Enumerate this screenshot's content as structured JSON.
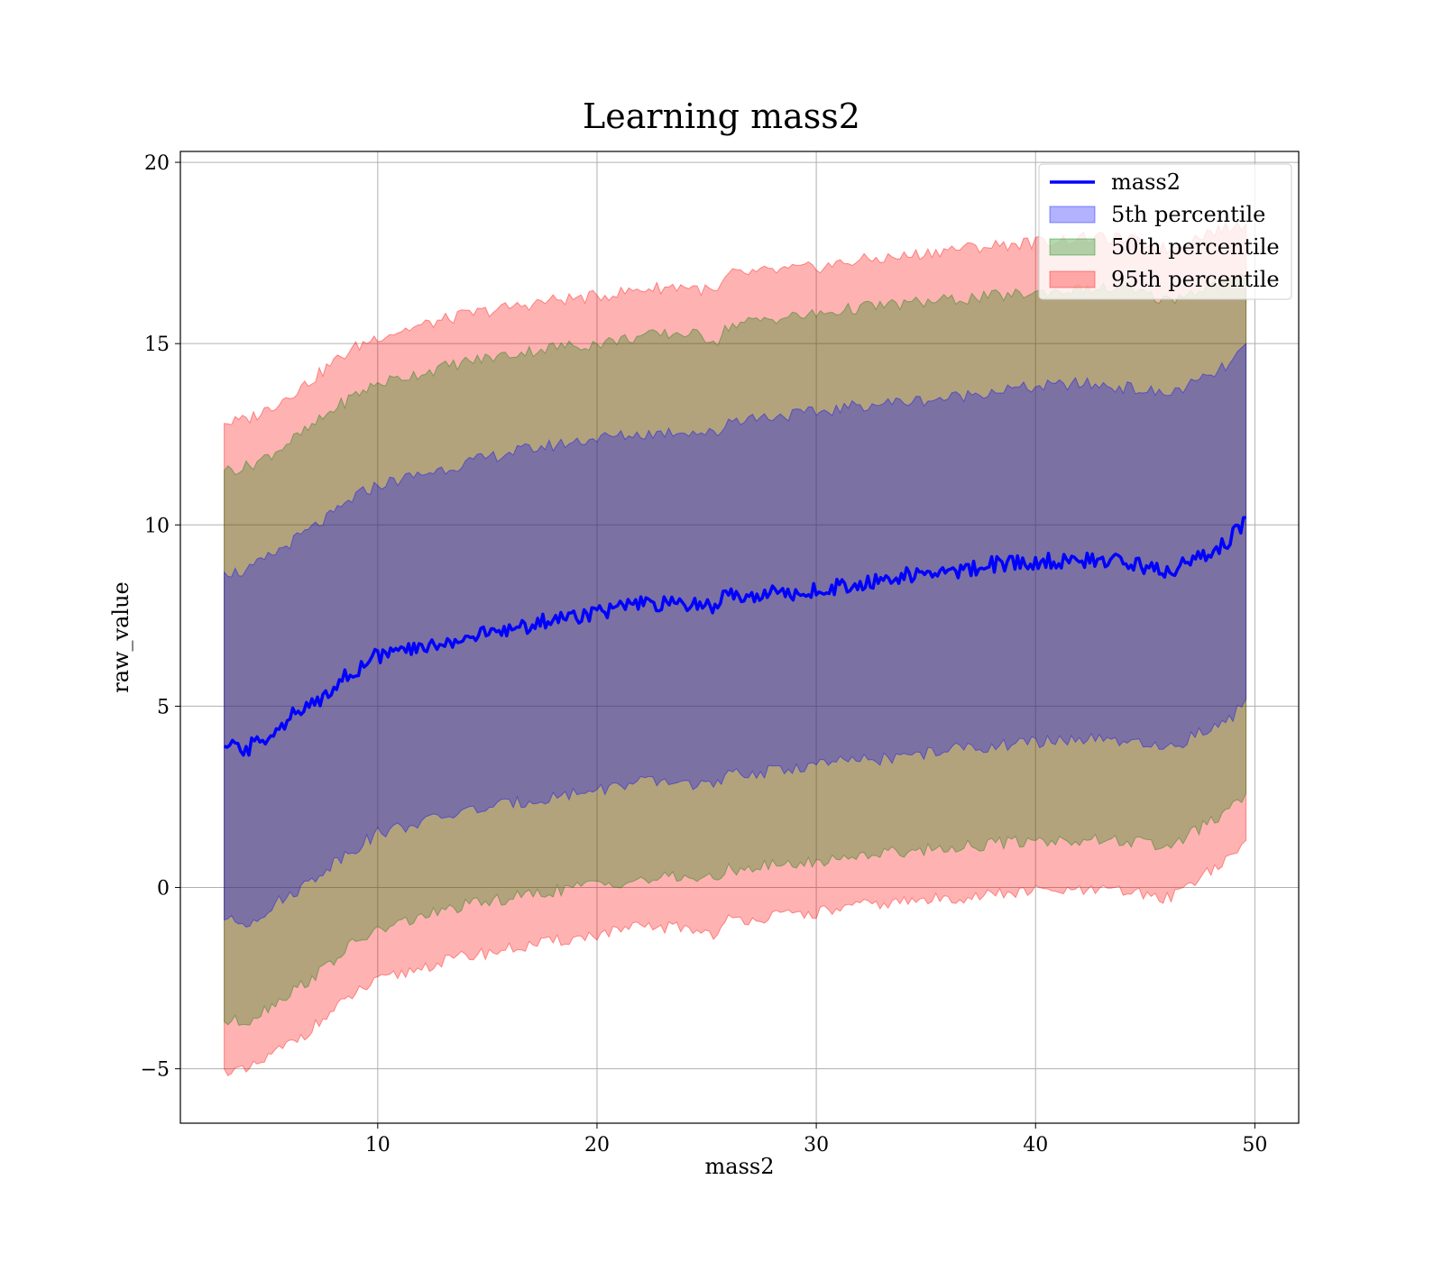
{
  "chart_data": {
    "type": "line",
    "title": "Learning mass2",
    "xlabel": "mass2",
    "ylabel": "raw_value",
    "xlim": [
      1,
      52
    ],
    "ylim": [
      -6.5,
      20.3
    ],
    "xticks": [
      10,
      20,
      30,
      40,
      50
    ],
    "yticks": [
      -5,
      0,
      5,
      10,
      15,
      20
    ],
    "grid": true,
    "legend_position": "top-right",
    "line": {
      "name": "mass2",
      "color": "#0000ff",
      "x": [
        3,
        4,
        5,
        6,
        7,
        8,
        9,
        10,
        12,
        14,
        16,
        18,
        20,
        22,
        24,
        25.5,
        26,
        28,
        30,
        32,
        34,
        36,
        38,
        40,
        42,
        44,
        46,
        48,
        49,
        49.6
      ],
      "y": [
        3.9,
        3.8,
        4.2,
        4.7,
        5.0,
        5.6,
        6.0,
        6.4,
        6.6,
        6.9,
        7.1,
        7.4,
        7.6,
        7.8,
        7.8,
        7.8,
        8.1,
        8.1,
        8.2,
        8.4,
        8.6,
        8.7,
        8.9,
        9.0,
        9.0,
        9.0,
        8.7,
        9.2,
        9.7,
        10.2
      ]
    },
    "bands": [
      {
        "name": "95th percentile",
        "color": "#ff0000",
        "opacity": 0.3,
        "x": [
          3,
          4,
          5,
          6,
          7,
          8,
          9,
          10,
          12,
          14,
          16,
          18,
          20,
          22,
          24,
          25.5,
          26,
          28,
          30,
          32,
          34,
          36,
          38,
          40,
          42,
          44,
          46,
          48,
          49,
          49.6
        ],
        "lower": [
          -5.0,
          -5.1,
          -4.7,
          -4.3,
          -3.9,
          -3.4,
          -2.9,
          -2.6,
          -2.2,
          -1.9,
          -1.7,
          -1.5,
          -1.3,
          -1.1,
          -1.1,
          -1.3,
          -0.9,
          -0.8,
          -0.7,
          -0.5,
          -0.4,
          -0.3,
          -0.2,
          -0.1,
          -0.1,
          -0.1,
          -0.3,
          0.5,
          0.8,
          1.3
        ],
        "upper": [
          12.8,
          12.9,
          13.2,
          13.6,
          14.0,
          14.5,
          14.9,
          15.2,
          15.5,
          15.8,
          16.0,
          16.2,
          16.3,
          16.5,
          16.6,
          16.4,
          16.9,
          17.0,
          17.1,
          17.3,
          17.4,
          17.6,
          17.7,
          17.8,
          17.9,
          17.9,
          17.6,
          18.1,
          18.2,
          18.3
        ]
      },
      {
        "name": "50th percentile",
        "color": "#008000",
        "opacity": 0.3,
        "x": [
          3,
          4,
          5,
          6,
          7,
          8,
          9,
          10,
          12,
          14,
          16,
          18,
          20,
          22,
          24,
          25.5,
          26,
          28,
          30,
          32,
          34,
          36,
          38,
          40,
          42,
          44,
          46,
          48,
          49,
          49.6
        ],
        "lower": [
          -3.7,
          -3.7,
          -3.3,
          -2.9,
          -2.5,
          -2.0,
          -1.5,
          -1.2,
          -0.8,
          -0.5,
          -0.3,
          -0.1,
          0.1,
          0.2,
          0.3,
          0.2,
          0.5,
          0.6,
          0.7,
          0.9,
          1.0,
          1.1,
          1.2,
          1.3,
          1.3,
          1.3,
          1.1,
          1.8,
          2.2,
          2.6
        ],
        "upper": [
          11.5,
          11.6,
          11.9,
          12.3,
          12.7,
          13.2,
          13.6,
          13.9,
          14.2,
          14.5,
          14.7,
          14.9,
          15.0,
          15.2,
          15.3,
          15.1,
          15.5,
          15.7,
          15.8,
          16.0,
          16.1,
          16.2,
          16.3,
          16.4,
          16.5,
          16.5,
          16.2,
          16.6,
          16.7,
          16.8
        ]
      },
      {
        "name": "5th percentile",
        "color": "#0000ff",
        "opacity": 0.3,
        "x": [
          3,
          4,
          5,
          6,
          7,
          8,
          9,
          10,
          12,
          14,
          16,
          18,
          20,
          22,
          24,
          25.5,
          26,
          28,
          30,
          32,
          34,
          36,
          38,
          40,
          42,
          44,
          46,
          48,
          49,
          49.6
        ],
        "lower": [
          -0.9,
          -1.0,
          -0.6,
          -0.2,
          0.2,
          0.7,
          1.1,
          1.5,
          1.8,
          2.1,
          2.3,
          2.5,
          2.7,
          2.9,
          2.9,
          2.8,
          3.1,
          3.2,
          3.4,
          3.5,
          3.6,
          3.8,
          3.9,
          4.0,
          4.1,
          4.0,
          3.8,
          4.4,
          4.7,
          5.2
        ],
        "upper": [
          8.7,
          8.7,
          9.1,
          9.5,
          9.9,
          10.3,
          10.8,
          11.1,
          11.4,
          11.7,
          12.0,
          12.2,
          12.4,
          12.5,
          12.6,
          12.5,
          12.9,
          13.0,
          13.1,
          13.3,
          13.4,
          13.5,
          13.7,
          13.8,
          13.9,
          13.8,
          13.6,
          14.1,
          14.5,
          15.0
        ]
      }
    ],
    "legend": [
      {
        "label": "mass2",
        "kind": "line",
        "color": "#0000ff"
      },
      {
        "label": "5th percentile",
        "kind": "patch",
        "color": "#0000ff"
      },
      {
        "label": "50th percentile",
        "kind": "patch",
        "color": "#008000"
      },
      {
        "label": "95th percentile",
        "kind": "patch",
        "color": "#ff0000"
      }
    ]
  }
}
